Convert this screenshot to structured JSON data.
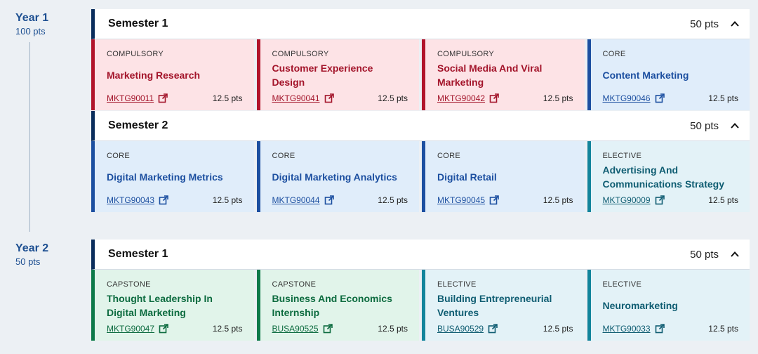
{
  "years": [
    {
      "label": "Year 1",
      "points": "100 pts",
      "semesters": [
        {
          "title": "Semester 1",
          "points": "50 pts",
          "subjects": [
            {
              "type": "COMPULSORY",
              "kind": "compulsory",
              "title": "Marketing Research",
              "code": "MKTG90011",
              "points": "12.5 pts"
            },
            {
              "type": "COMPULSORY",
              "kind": "compulsory",
              "title": "Customer Experience Design",
              "code": "MKTG90041",
              "points": "12.5 pts"
            },
            {
              "type": "COMPULSORY",
              "kind": "compulsory",
              "title": "Social Media And Viral Marketing",
              "code": "MKTG90042",
              "points": "12.5 pts"
            },
            {
              "type": "CORE",
              "kind": "core",
              "title": "Content Marketing",
              "code": "MKTG90046",
              "points": "12.5 pts"
            }
          ]
        },
        {
          "title": "Semester 2",
          "points": "50 pts",
          "subjects": [
            {
              "type": "CORE",
              "kind": "core",
              "title": "Digital Marketing Metrics",
              "code": "MKTG90043",
              "points": "12.5 pts"
            },
            {
              "type": "CORE",
              "kind": "core",
              "title": "Digital Marketing Analytics",
              "code": "MKTG90044",
              "points": "12.5 pts"
            },
            {
              "type": "CORE",
              "kind": "core",
              "title": "Digital Retail",
              "code": "MKTG90045",
              "points": "12.5 pts"
            },
            {
              "type": "ELECTIVE",
              "kind": "elective",
              "title": "Advertising And Communications Strategy",
              "code": "MKTG90009",
              "points": "12.5 pts"
            }
          ]
        }
      ]
    },
    {
      "label": "Year 2",
      "points": "50 pts",
      "semesters": [
        {
          "title": "Semester 1",
          "points": "50 pts",
          "subjects": [
            {
              "type": "CAPSTONE",
              "kind": "capstone",
              "title": "Thought Leadership In Digital Marketing",
              "code": "MKTG90047",
              "points": "12.5 pts"
            },
            {
              "type": "CAPSTONE",
              "kind": "capstone",
              "title": "Business And Economics Internship",
              "code": "BUSA90525",
              "points": "12.5 pts"
            },
            {
              "type": "ELECTIVE",
              "kind": "elective",
              "title": "Building Entrepreneurial Ventures",
              "code": "BUSA90529",
              "points": "12.5 pts"
            },
            {
              "type": "ELECTIVE",
              "kind": "elective",
              "title": "Neuromarketing",
              "code": "MKTG90033",
              "points": "12.5 pts"
            }
          ]
        }
      ]
    }
  ],
  "icons": {
    "collapse": "chevron-up-icon",
    "external": "external-link-icon"
  }
}
